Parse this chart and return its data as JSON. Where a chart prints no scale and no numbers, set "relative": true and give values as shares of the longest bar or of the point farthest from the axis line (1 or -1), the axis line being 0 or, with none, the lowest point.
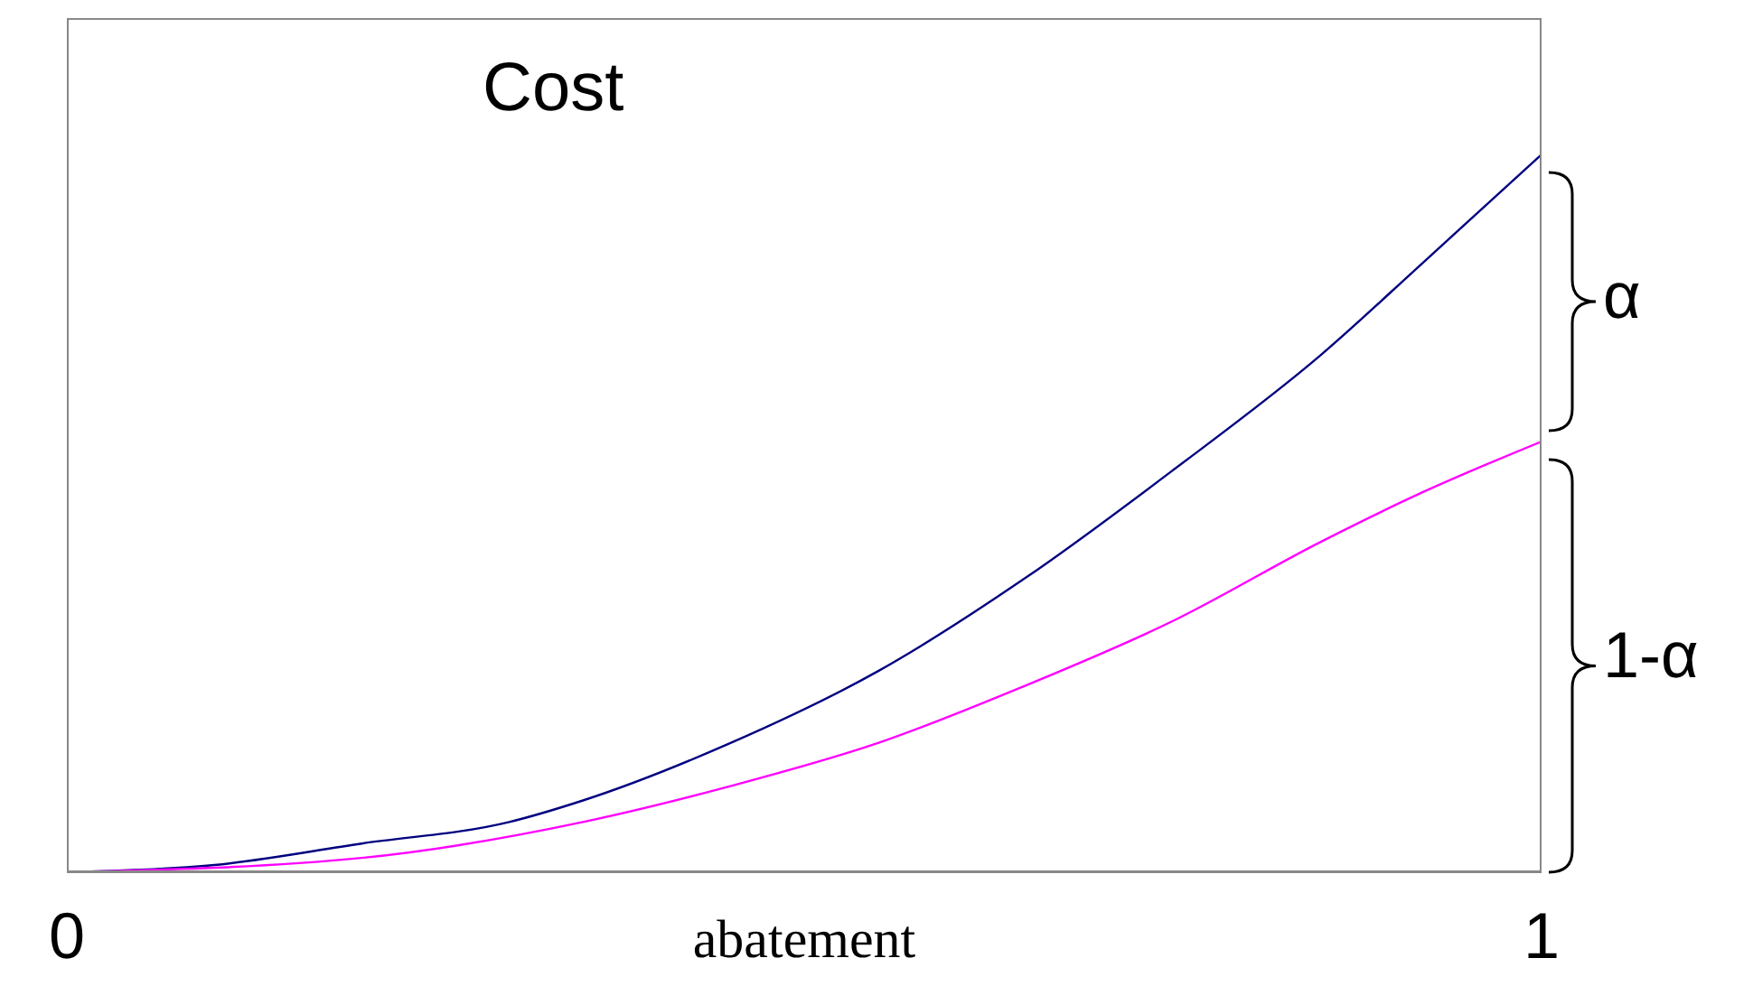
{
  "chart_data": {
    "type": "line",
    "title": "Cost",
    "xlabel": "abatement",
    "relative": true,
    "xlim": [
      0,
      1
    ],
    "xticks": [
      0,
      1
    ],
    "marker": "none",
    "line_style": "solid",
    "annotations": [
      "α",
      "1-α"
    ],
    "series": [
      {
        "color": "#000080",
        "x": [
          0,
          0.1,
          0.2,
          0.3,
          0.35,
          0.45,
          0.55,
          0.65,
          0.75,
          0.85,
          0.92,
          1
        ],
        "values": [
          0,
          0.01,
          0.04,
          0.07,
          0.1,
          0.18,
          0.28,
          0.41,
          0.56,
          0.72,
          0.85,
          1
        ]
      },
      {
        "color": "#ff00ff",
        "x": [
          0,
          0.2,
          0.35,
          0.45,
          0.55,
          0.65,
          0.75,
          0.85,
          0.92,
          1
        ],
        "values": [
          0,
          0.02,
          0.07,
          0.12,
          0.18,
          0.26,
          0.35,
          0.46,
          0.53,
          0.6
        ]
      }
    ]
  }
}
